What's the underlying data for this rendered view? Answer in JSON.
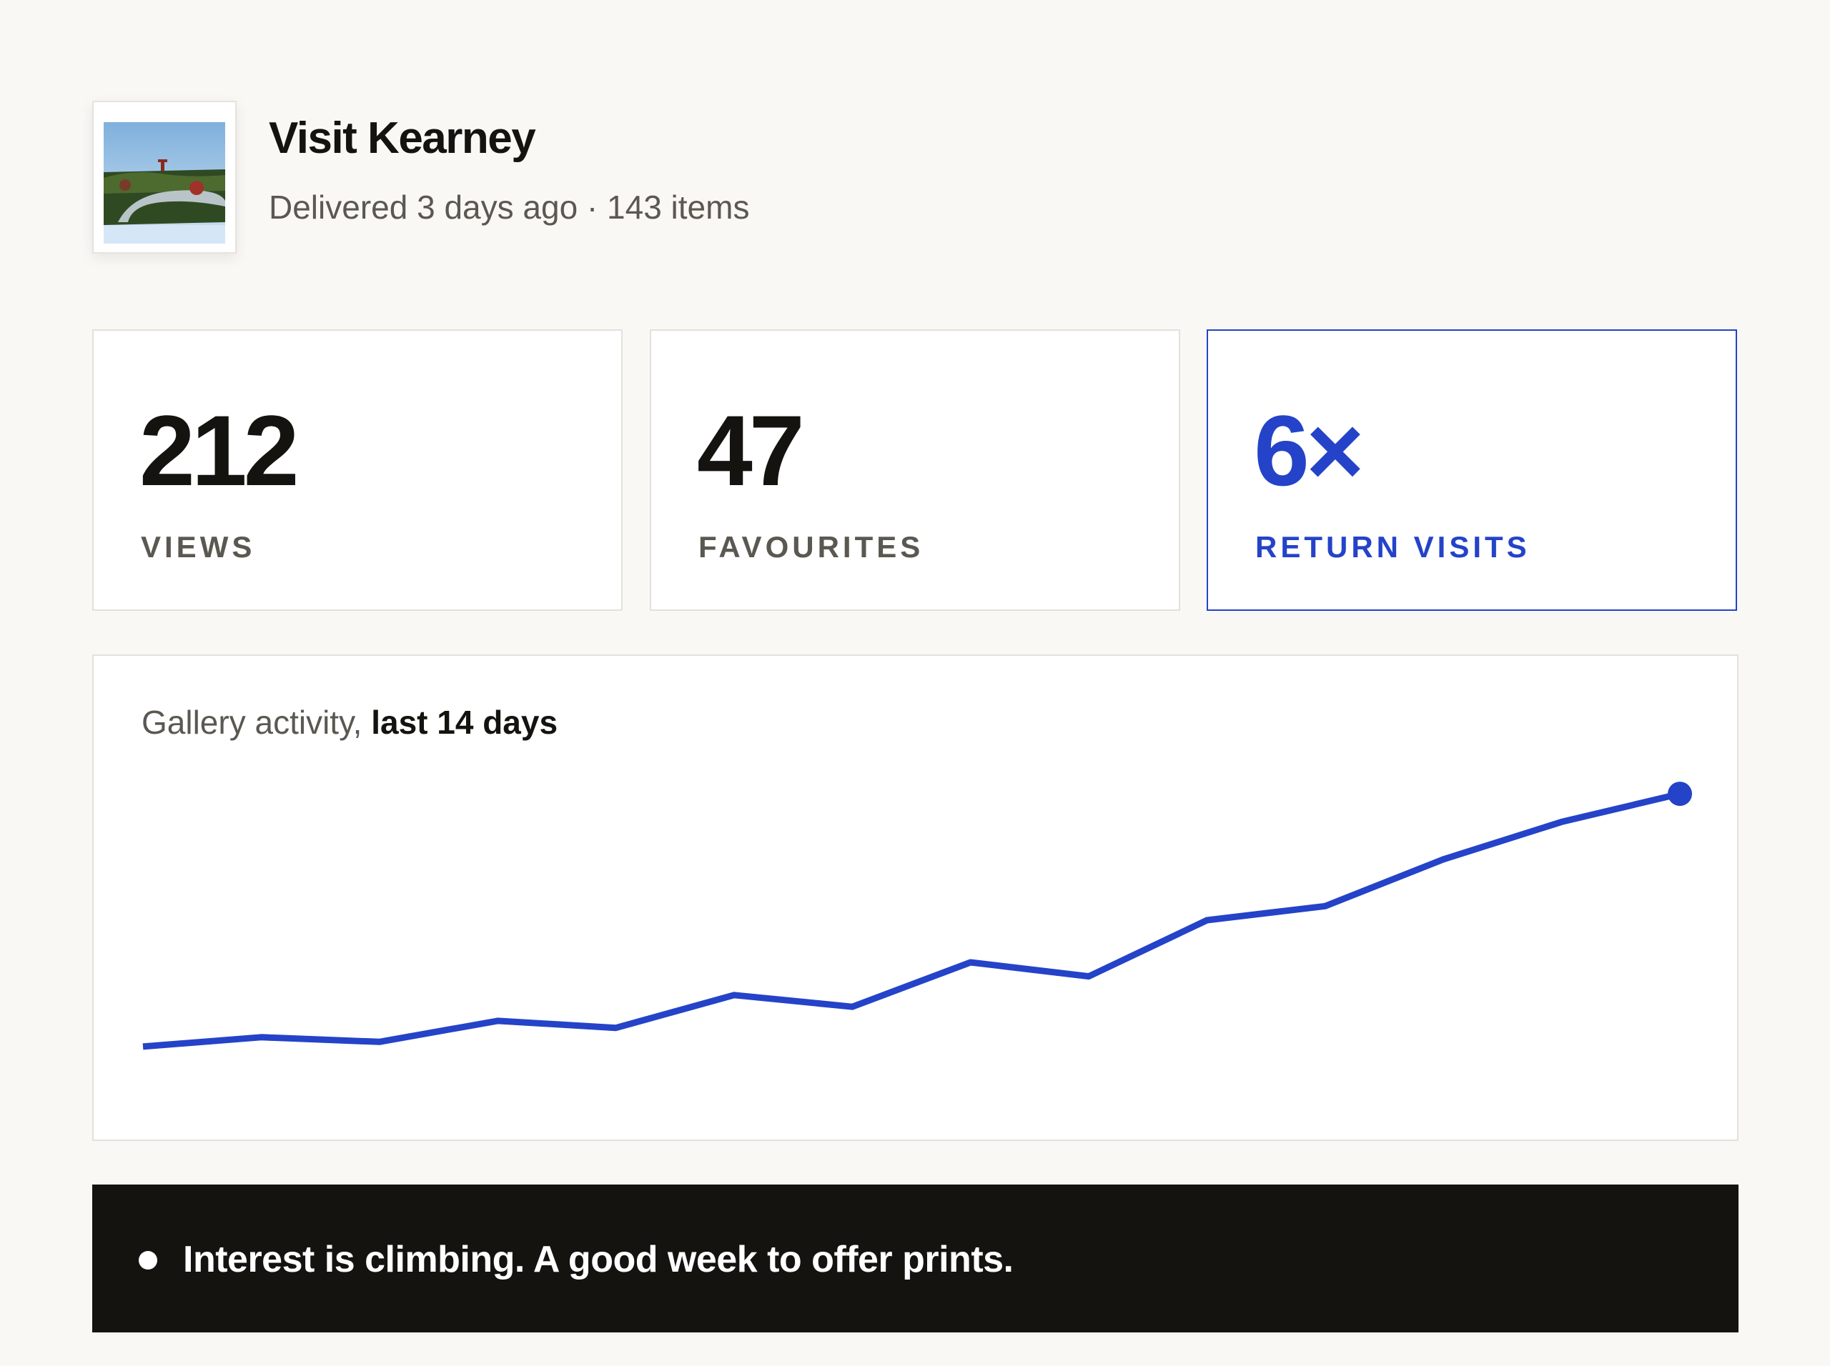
{
  "gallery": {
    "title": "Visit Kearney",
    "subtitle": "Delivered 3 days ago · 143 items"
  },
  "stats": [
    {
      "value": "212",
      "label": "VIEWS"
    },
    {
      "value": "47",
      "label": "FAVOURITES"
    },
    {
      "value": "6×",
      "label": "RETURN VISITS"
    }
  ],
  "colors": {
    "accent": "#2443c8",
    "ink": "#14130f",
    "muted": "#5a5850",
    "background": "#f9f8f5"
  },
  "chart_data": {
    "type": "line",
    "title_prefix": "Gallery activity, ",
    "title_emphasis": "last 14 days",
    "x": [
      1,
      2,
      3,
      4,
      5,
      6,
      7,
      8,
      9,
      10,
      11,
      12,
      13,
      14
    ],
    "values": [
      4,
      8,
      6,
      15,
      12,
      26,
      21,
      40,
      34,
      58,
      64,
      84,
      100,
      112
    ],
    "ylim": [
      0,
      116
    ],
    "grid": false,
    "endpoint_marker": true
  },
  "insight": {
    "text": "Interest is climbing. A good week to offer prints."
  }
}
